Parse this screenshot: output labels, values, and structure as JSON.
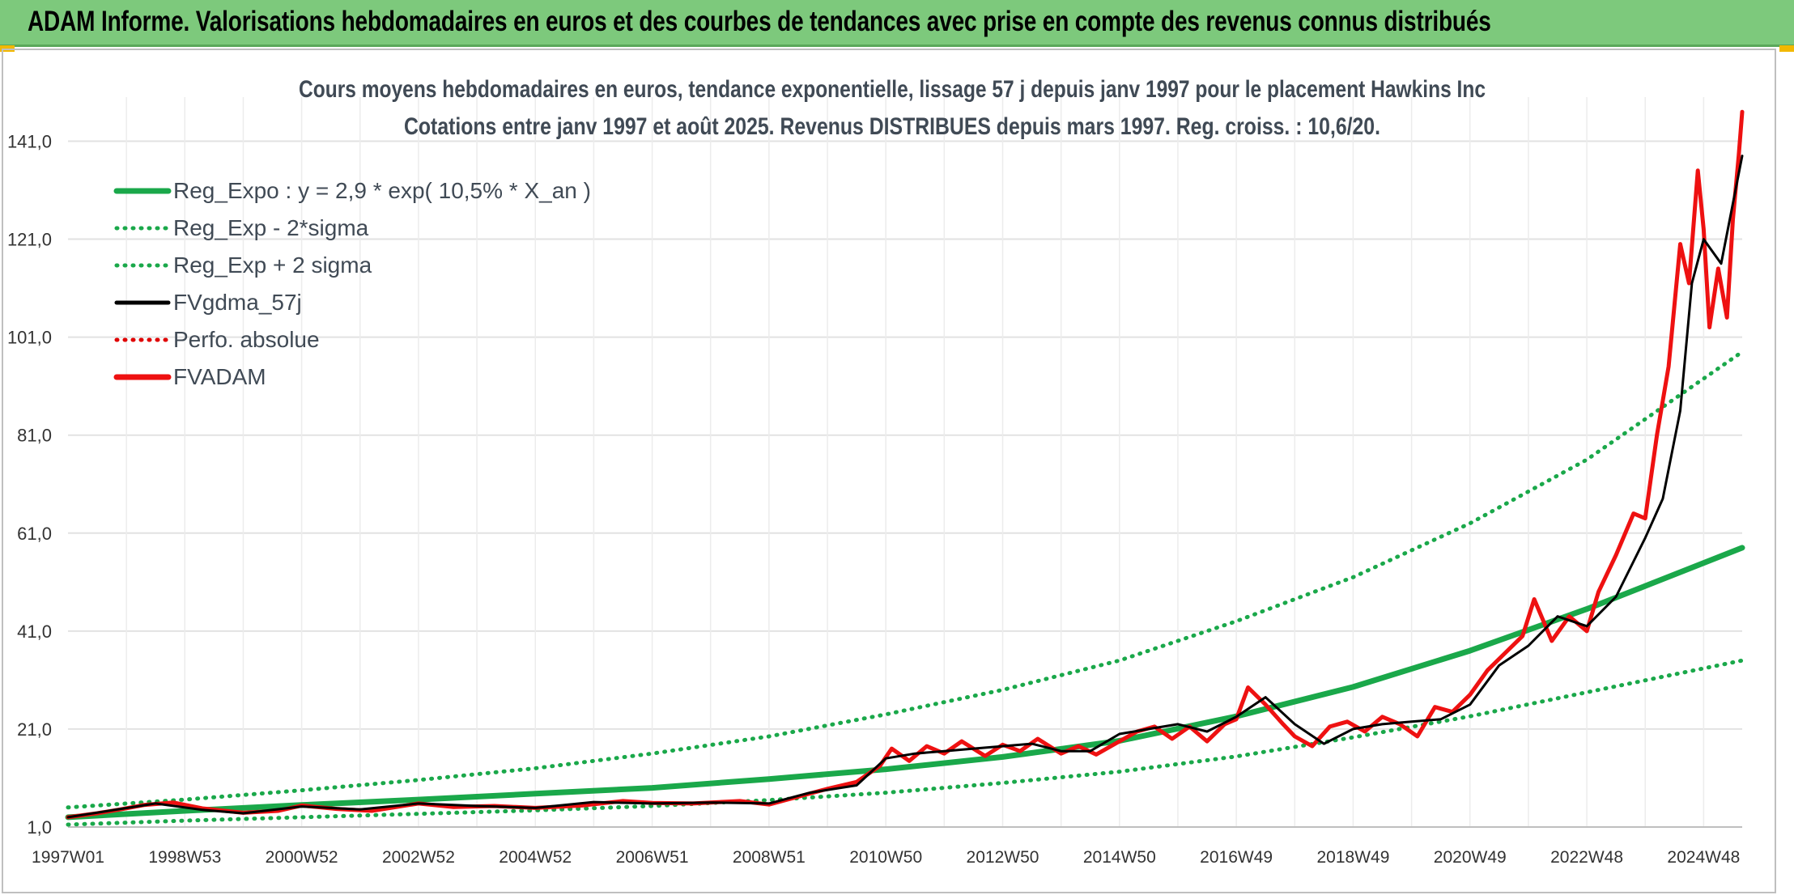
{
  "banner": {
    "title": "ADAM Informe. Valorisations hebdomadaires en euros et des courbes de tendances avec prise en compte des revenus connus distribués"
  },
  "colors": {
    "banner_bg": "#7dc97c",
    "reg_expo": "#1aa84a",
    "sigma_bands": "#1aa84a",
    "fvgdma": "#000000",
    "perfo": "#e00000",
    "fvadam": "#ee1111"
  },
  "chart_data": {
    "type": "line",
    "title_line1": "Cours moyens hebdomadaires en euros, tendance exponentielle, lissage 57 j depuis janv 1997 pour le placement Hawkins Inc",
    "title_line2": "Cotations entre janv 1997 et août 2025. Revenus DISTRIBUES depuis mars 1997. Reg. croiss. : 10,6/20.",
    "ylim": [
      1,
      150
    ],
    "yticks": [
      "1,0",
      "21,0",
      "41,0",
      "61,0",
      "81,0",
      "101,0",
      "121,0",
      "141,0"
    ],
    "ytick_values": [
      1,
      21,
      41,
      61,
      81,
      101,
      121,
      141
    ],
    "xlim": [
      1997.0,
      2025.66
    ],
    "xticks": [
      "1997W01",
      "1998W53",
      "2000W52",
      "2002W52",
      "2004W52",
      "2006W51",
      "2008W51",
      "2010W50",
      "2012W50",
      "2014W50",
      "2016W49",
      "2018W49",
      "2020W49",
      "2022W48",
      "2024W48"
    ],
    "xtick_values": [
      1997.0,
      1999.0,
      2001.0,
      2003.0,
      2005.0,
      2007.0,
      2009.0,
      2011.0,
      2013.0,
      2015.0,
      2017.0,
      2019.0,
      2021.0,
      2023.0,
      2025.0
    ],
    "grid": true,
    "legend_position": "top-left",
    "legend": [
      {
        "label": "Reg_Expo : y = 2,9 * exp( 10,5% *  X_an )",
        "style": "solid-thick",
        "color": "#1aa84a"
      },
      {
        "label": "Reg_Exp - 2*sigma",
        "style": "dotted",
        "color": "#1aa84a"
      },
      {
        "label": "Reg_Exp + 2 sigma",
        "style": "dotted",
        "color": "#1aa84a"
      },
      {
        "label": "FVgdma_57j",
        "style": "solid",
        "color": "#000000"
      },
      {
        "label": "Perfo. absolue",
        "style": "dotted",
        "color": "#e00000"
      },
      {
        "label": "FVADAM",
        "style": "solid-thick",
        "color": "#ee1111"
      }
    ],
    "series": [
      {
        "name": "Reg_Expo : y = 2,9 * exp( 10,5% *  X_an )",
        "x": [
          1997.0,
          1999.0,
          2001.0,
          2003.0,
          2005.0,
          2007.0,
          2009.0,
          2011.0,
          2013.0,
          2015.0,
          2017.0,
          2019.0,
          2021.0,
          2023.0,
          2025.66
        ],
        "y": [
          3.0,
          4.3,
          5.5,
          6.6,
          7.8,
          9.0,
          10.8,
          12.8,
          15.3,
          18.6,
          23.6,
          29.6,
          37.0,
          45.5,
          58.0
        ]
      },
      {
        "name": "Reg_Exp - 2*sigma",
        "x": [
          1997.0,
          1999.0,
          2001.0,
          2003.0,
          2005.0,
          2007.0,
          2009.0,
          2011.0,
          2013.0,
          2015.0,
          2017.0,
          2019.0,
          2021.0,
          2023.0,
          2025.66
        ],
        "y": [
          1.5,
          2.3,
          3.0,
          3.7,
          4.4,
          5.3,
          6.5,
          8.0,
          10.0,
          12.3,
          15.4,
          19.3,
          23.6,
          28.5,
          35.0
        ]
      },
      {
        "name": "Reg_Exp + 2 sigma",
        "x": [
          1997.0,
          1999.0,
          2001.0,
          2003.0,
          2005.0,
          2007.0,
          2009.0,
          2011.0,
          2013.0,
          2015.0,
          2017.0,
          2019.0,
          2021.0,
          2023.0,
          2025.66
        ],
        "y": [
          5.0,
          6.6,
          8.5,
          10.6,
          13.0,
          16.0,
          19.5,
          24.0,
          29.0,
          35.0,
          43.0,
          52.0,
          63.0,
          76.0,
          98.0
        ]
      },
      {
        "name": "FVgdma_57j",
        "x": [
          1997.0,
          1997.8,
          1998.5,
          1999.3,
          2000.0,
          2001.0,
          2002.0,
          2003.0,
          2004.0,
          2005.0,
          2006.0,
          2007.0,
          2008.0,
          2009.0,
          2009.7,
          2010.5,
          2011.0,
          2011.5,
          2012.0,
          2012.5,
          2013.0,
          2013.5,
          2014.0,
          2014.5,
          2015.0,
          2015.5,
          2016.0,
          2016.5,
          2017.0,
          2017.5,
          2018.0,
          2018.5,
          2019.0,
          2019.5,
          2020.0,
          2020.5,
          2021.0,
          2021.5,
          2022.0,
          2022.5,
          2023.0,
          2023.5,
          2024.0,
          2024.3,
          2024.6,
          2024.8,
          2025.0,
          2025.3,
          2025.66
        ],
        "y": [
          3.0,
          4.5,
          5.8,
          4.5,
          3.8,
          5.2,
          4.6,
          5.8,
          5.3,
          4.9,
          6.1,
          5.8,
          6.0,
          5.8,
          8.0,
          9.5,
          15.0,
          16.0,
          16.5,
          17.0,
          17.5,
          18.0,
          16.5,
          16.5,
          20.0,
          21.0,
          22.0,
          20.5,
          23.5,
          27.5,
          22.0,
          18.0,
          21.0,
          22.0,
          22.5,
          23.0,
          26.0,
          34.0,
          38.0,
          44.0,
          42.0,
          48.0,
          60.0,
          68.0,
          86.0,
          112.0,
          121.0,
          116.0,
          138.0
        ]
      },
      {
        "name": "FVADAM",
        "x": [
          1997.0,
          1997.5,
          1997.9,
          1998.3,
          1998.8,
          1999.3,
          2000.0,
          2000.6,
          2001.0,
          2001.6,
          2002.2,
          2003.0,
          2003.6,
          2004.3,
          2005.0,
          2005.8,
          2006.5,
          2007.0,
          2007.7,
          2008.5,
          2009.0,
          2009.5,
          2010.0,
          2010.5,
          2010.9,
          2011.1,
          2011.4,
          2011.7,
          2012.0,
          2012.3,
          2012.7,
          2013.0,
          2013.3,
          2013.6,
          2014.0,
          2014.3,
          2014.6,
          2015.0,
          2015.3,
          2015.6,
          2015.9,
          2016.2,
          2016.5,
          2016.8,
          2017.0,
          2017.2,
          2017.5,
          2017.8,
          2018.0,
          2018.3,
          2018.6,
          2018.9,
          2019.2,
          2019.5,
          2019.8,
          2020.1,
          2020.4,
          2020.7,
          2021.0,
          2021.3,
          2021.6,
          2021.9,
          2022.1,
          2022.4,
          2022.7,
          2023.0,
          2023.2,
          2023.5,
          2023.8,
          2024.0,
          2024.2,
          2024.4,
          2024.6,
          2024.75,
          2024.9,
          2025.0,
          2025.1,
          2025.25,
          2025.4,
          2025.5,
          2025.6,
          2025.66
        ],
        "y": [
          3.0,
          3.8,
          4.6,
          5.5,
          6.0,
          4.8,
          3.9,
          4.3,
          5.4,
          4.7,
          4.3,
          5.8,
          5.1,
          5.3,
          4.9,
          5.4,
          6.3,
          5.9,
          5.8,
          6.3,
          5.6,
          7.2,
          8.8,
          10.2,
          13.5,
          17.0,
          14.5,
          17.5,
          16.0,
          18.5,
          15.5,
          17.8,
          16.5,
          19.0,
          16.0,
          17.5,
          15.8,
          18.5,
          20.5,
          21.5,
          19.0,
          21.5,
          18.5,
          22.0,
          23.0,
          29.5,
          26.0,
          22.0,
          19.5,
          17.5,
          21.5,
          22.5,
          20.5,
          23.5,
          22.0,
          19.5,
          25.5,
          24.5,
          28.0,
          33.0,
          36.5,
          40.0,
          47.5,
          39.0,
          44.0,
          41.0,
          49.0,
          56.5,
          65.0,
          64.0,
          81.0,
          95.0,
          120.0,
          112.0,
          135.0,
          123.0,
          103.0,
          115.0,
          105.0,
          125.0,
          138.0,
          147.0
        ]
      }
    ]
  }
}
